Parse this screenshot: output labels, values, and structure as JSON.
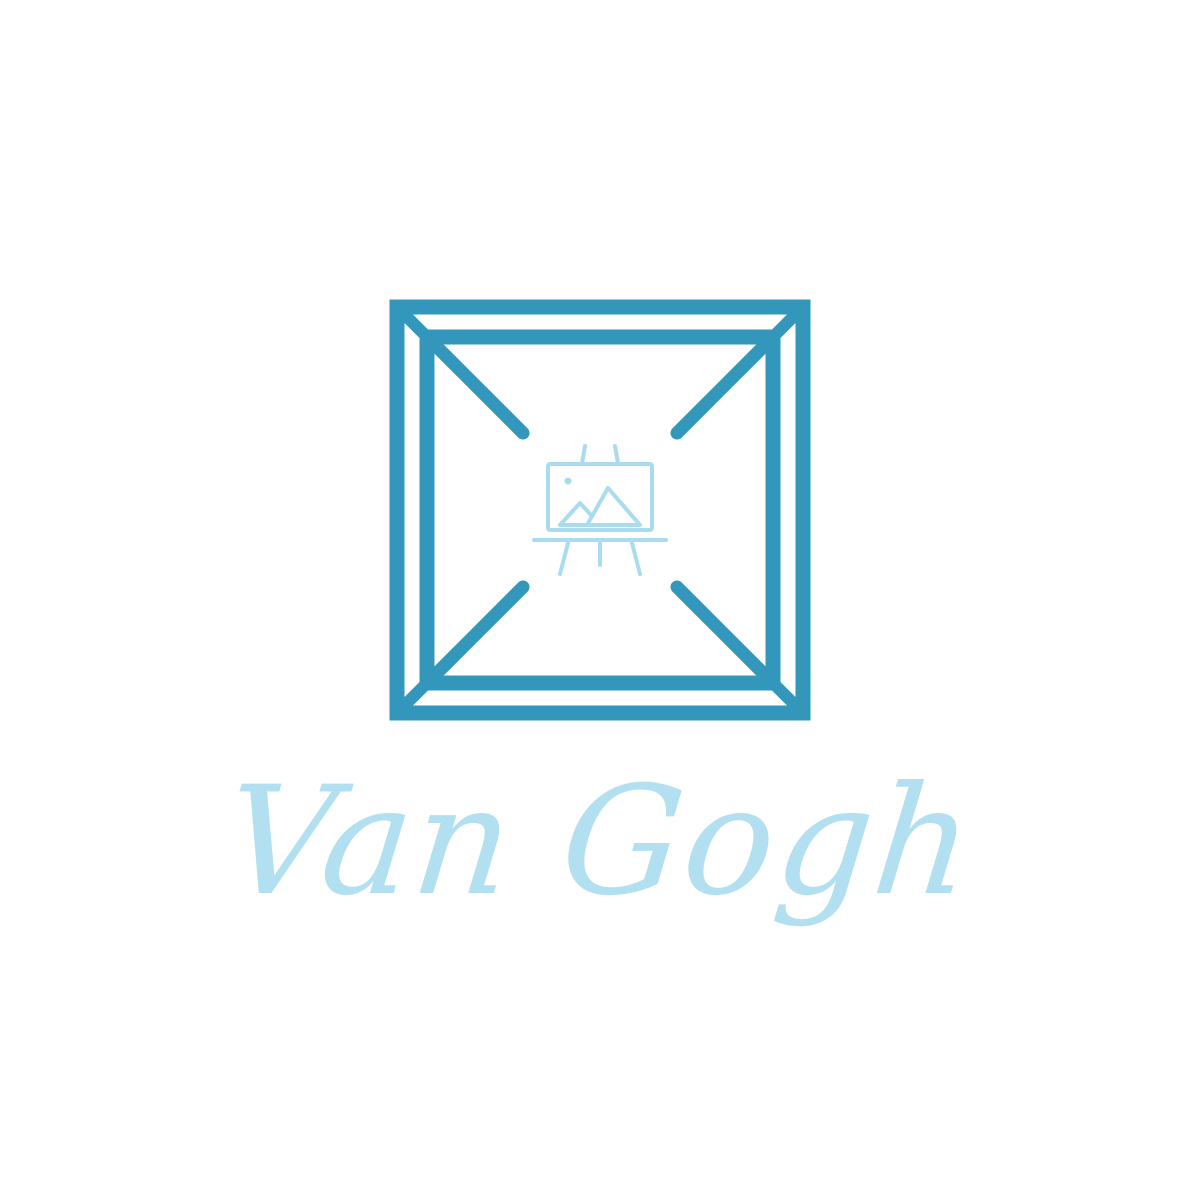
{
  "brand": {
    "name": "Van Gogh"
  },
  "icons": {
    "frame": "picture-frame-icon",
    "easel": "easel-painting-icon",
    "mountains": "mountains-icon",
    "sun": "sun-dot-icon"
  },
  "colors": {
    "frame": "#3397bc",
    "easel": "#a9dcef",
    "text": "#b3e0f1",
    "background": "#ffffff"
  }
}
